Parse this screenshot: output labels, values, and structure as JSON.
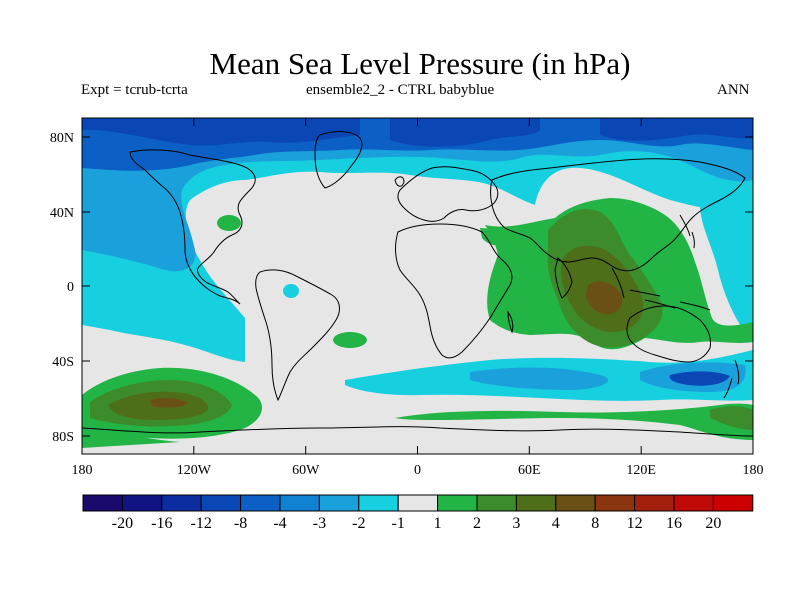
{
  "title": "Mean Sea Level Pressure (in hPa)",
  "subtitle_left": "Expt = tcrub-tcrta",
  "subtitle_center": "ensemble2_2 - CTRL babyblue",
  "subtitle_right": "ANN",
  "lat_labels": [
    "80N",
    "40N",
    "0",
    "40S",
    "80S"
  ],
  "lon_labels": [
    "180",
    "120W",
    "60W",
    "0",
    "60E",
    "120E",
    "180"
  ],
  "colorbar": {
    "levels": [
      "-20",
      "-16",
      "-12",
      "-8",
      "-4",
      "-3",
      "-2",
      "-1",
      "1",
      "2",
      "3",
      "4",
      "8",
      "12",
      "16",
      "20"
    ],
    "colors": [
      "#1a0a6e",
      "#0f1482",
      "#0b2da0",
      "#0a46b4",
      "#0c5fc4",
      "#1181d2",
      "#1aa0da",
      "#16d0e0",
      "#e6e6e6",
      "#23b446",
      "#3c8c2c",
      "#4f6e1a",
      "#6b5016",
      "#8a3410",
      "#a5200c",
      "#bf0a08",
      "#cc0000"
    ]
  },
  "colors": {
    "background": "#e6e6e6",
    "coast": "#000000"
  }
}
